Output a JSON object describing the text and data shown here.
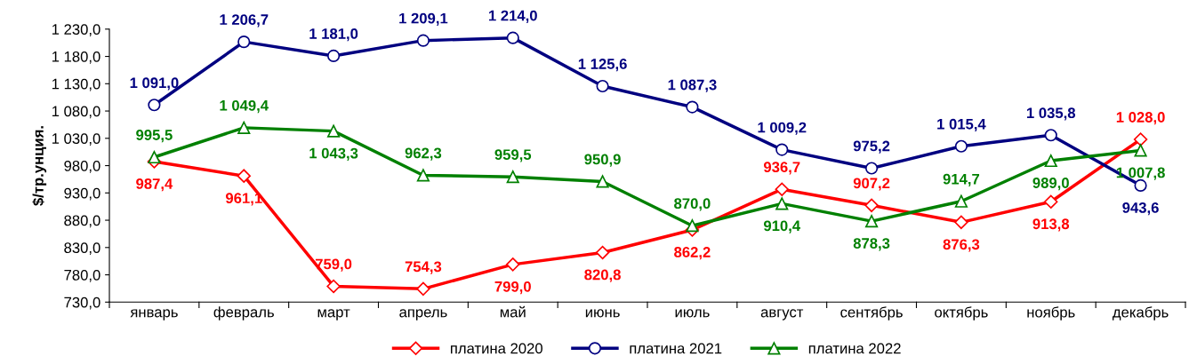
{
  "chart_data": {
    "type": "line",
    "ylabel": "$/тр.унция.",
    "categories": [
      "январь",
      "февраль",
      "март",
      "апрель",
      "май",
      "июнь",
      "июль",
      "август",
      "сентябрь",
      "октябрь",
      "ноябрь",
      "декабрь"
    ],
    "series": [
      {
        "name": "платина 2020",
        "color": "#ff0000",
        "marker": "diamond",
        "values": [
          987.4,
          961.1,
          759.0,
          754.3,
          799.0,
          820.8,
          862.2,
          936.7,
          907.2,
          876.3,
          913.8,
          1028.0
        ],
        "value_labels": [
          "987,4",
          "961,1",
          "759,0",
          "754,3",
          "799,0",
          "820,8",
          "862,2",
          "936,7",
          "907,2",
          "876,3",
          "913,8",
          "1 028,0"
        ]
      },
      {
        "name": "платина 2021",
        "color": "#000080",
        "marker": "circle",
        "values": [
          1091.0,
          1206.7,
          1181.0,
          1209.1,
          1214.0,
          1125.6,
          1087.3,
          1009.2,
          975.2,
          1015.4,
          1035.8,
          943.6
        ],
        "value_labels": [
          "1 091,0",
          "1 206,7",
          "1 181,0",
          "1 209,1",
          "1 214,0",
          "1 125,6",
          "1 087,3",
          "1 009,2",
          "975,2",
          "1 015,4",
          "1 035,8",
          "943,6"
        ]
      },
      {
        "name": "платина 2022",
        "color": "#008000",
        "marker": "triangle",
        "values": [
          995.5,
          1049.4,
          1043.3,
          962.3,
          959.5,
          950.9,
          870.0,
          910.4,
          878.3,
          914.7,
          989.0,
          1007.8
        ],
        "value_labels": [
          "995,5",
          "1 049,4",
          "1 043,3",
          "962,3",
          "959,5",
          "950,9",
          "870,0",
          "910,4",
          "878,3",
          "914,7",
          "989,0",
          "1 007,8"
        ]
      }
    ],
    "ylim": [
      730,
      1230
    ],
    "yticks": [
      {
        "value": 730,
        "label": "730,0"
      },
      {
        "value": 780,
        "label": "780,0"
      },
      {
        "value": 830,
        "label": "830,0"
      },
      {
        "value": 880,
        "label": "880,0"
      },
      {
        "value": 930,
        "label": "930,0"
      },
      {
        "value": 980,
        "label": "980,0"
      },
      {
        "value": 1030,
        "label": "1 030,0"
      },
      {
        "value": 1080,
        "label": "1 080,0"
      },
      {
        "value": 1130,
        "label": "1 130,0"
      },
      {
        "value": 1180,
        "label": "1 180,0"
      },
      {
        "value": 1230,
        "label": "1 230,0"
      }
    ],
    "grid": false,
    "legend": "bottom",
    "line_style": "solid"
  }
}
